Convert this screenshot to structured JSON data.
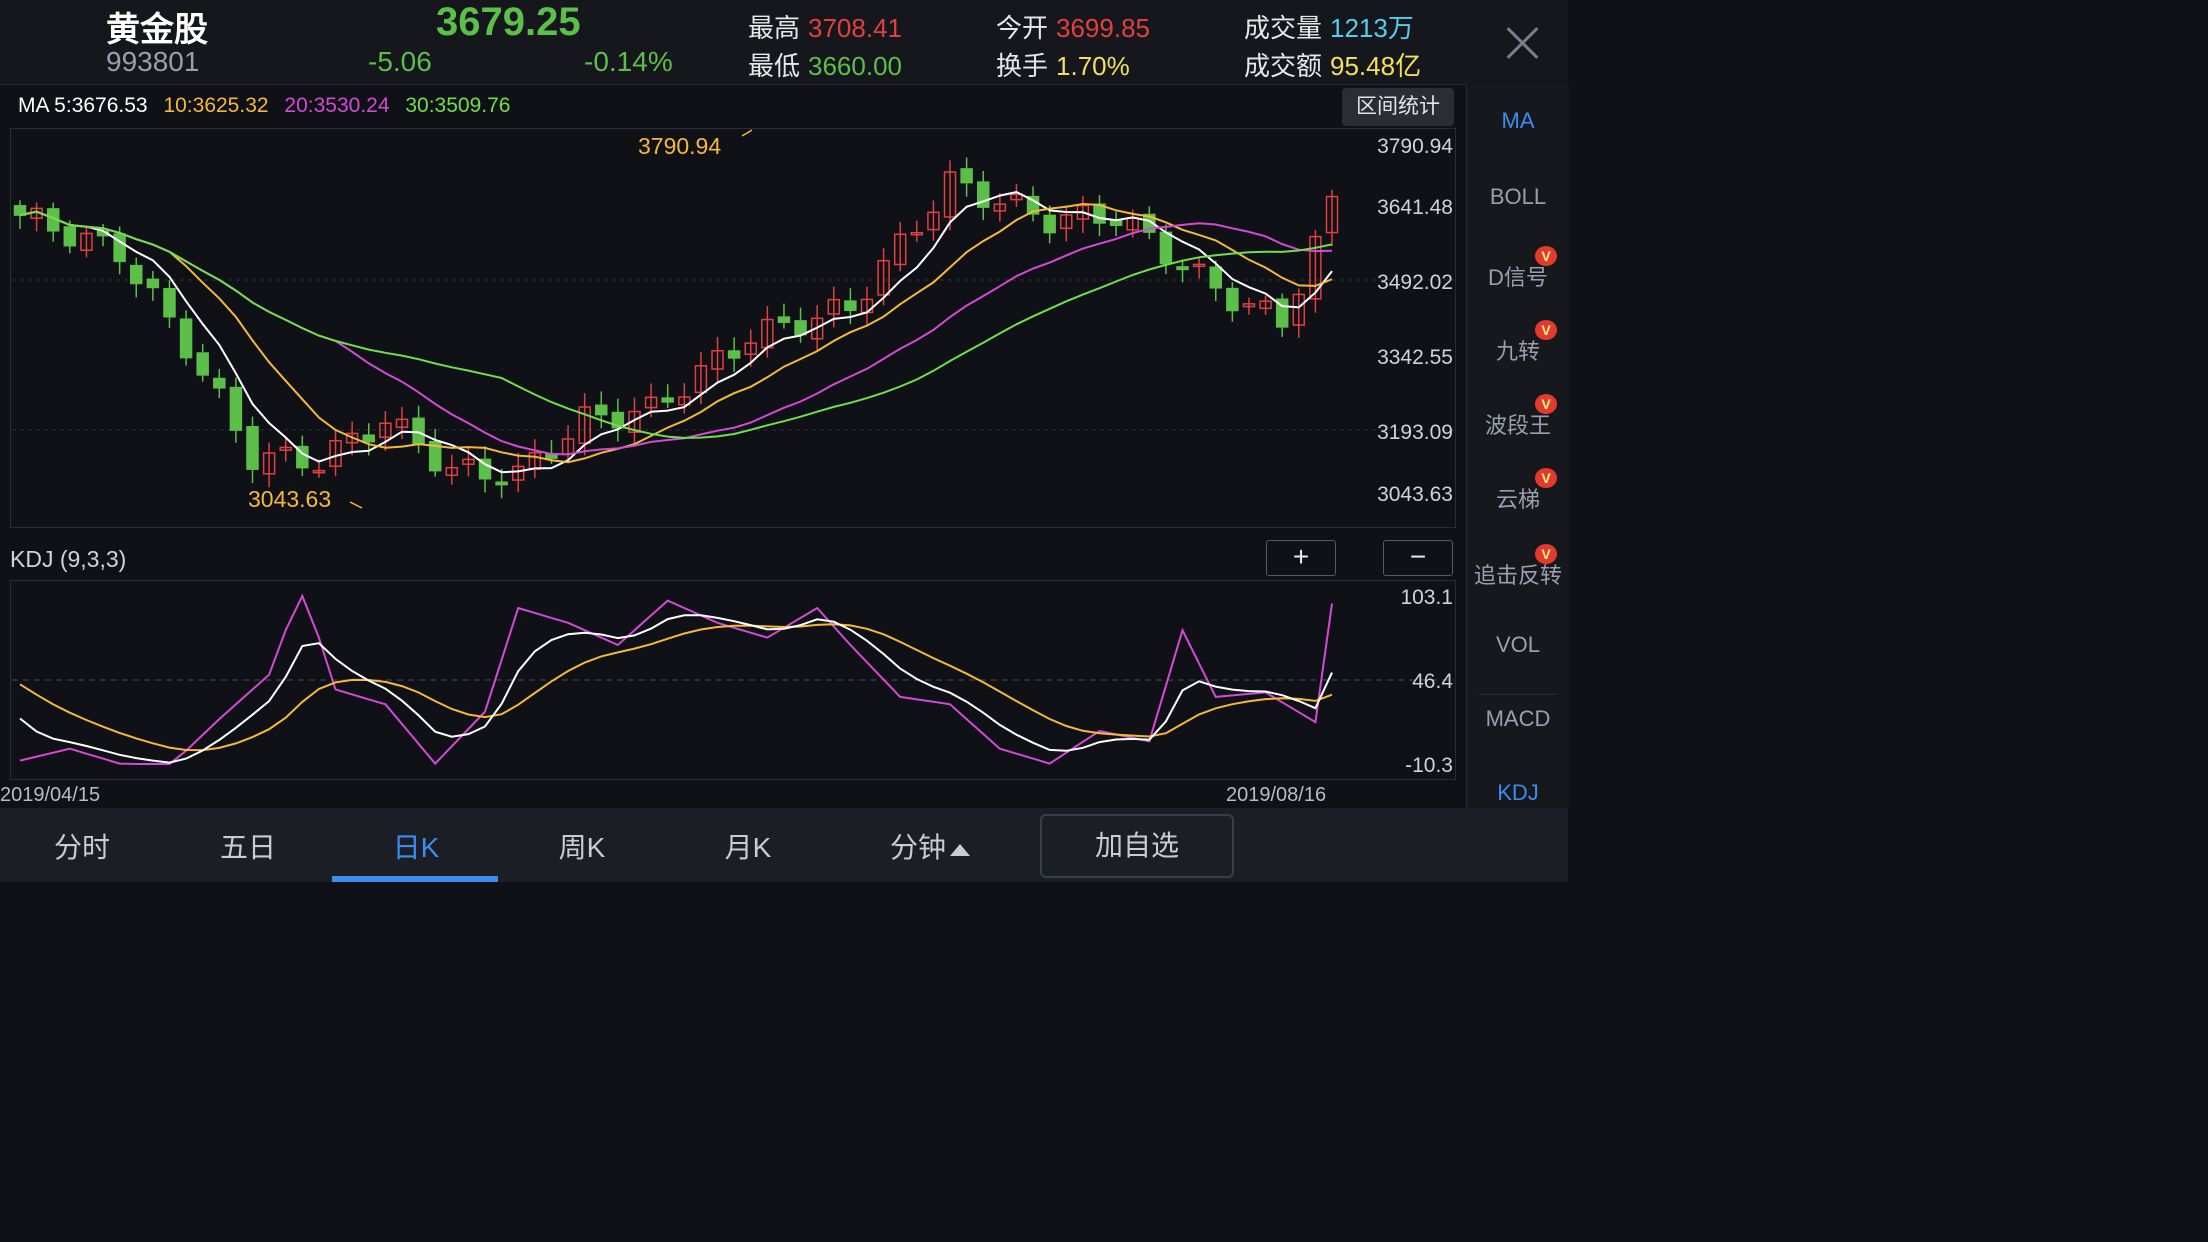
{
  "header": {
    "name": "黄金股",
    "code": "993801",
    "price": "3679.25",
    "change": "-5.06",
    "change_pct": "-0.14%",
    "high_label": "最高",
    "high": "3708.41",
    "low_label": "最低",
    "low": "3660.00",
    "open_label": "今开",
    "open": "3699.85",
    "turnover_label": "换手",
    "turnover": "1.70%",
    "volume_label": "成交量",
    "volume": "1213万",
    "amount_label": "成交额",
    "amount": "95.48亿"
  },
  "ma_legend": {
    "ma5": "MA 5:3676.53",
    "ma10": "10:3625.32",
    "ma20": "20:3530.24",
    "ma30": "30:3509.76"
  },
  "range_button": "区间统计",
  "price_chart": {
    "y_ticks": [
      "3790.94",
      "3641.48",
      "3492.02",
      "3342.55",
      "3193.09",
      "3043.63"
    ],
    "max_annotation": "3790.94",
    "min_annotation": "3043.63"
  },
  "kdj": {
    "title": "KDJ (9,3,3)",
    "y_ticks": [
      "103.1",
      "46.4",
      "-10.3"
    ],
    "zoom_in": "+",
    "zoom_out": "−"
  },
  "dates": {
    "start": "2019/04/15",
    "end": "2019/08/16"
  },
  "side_items": [
    {
      "label": "MA",
      "active": true,
      "badge": false
    },
    {
      "label": "BOLL",
      "active": false,
      "badge": false
    },
    {
      "label": "D信号",
      "active": false,
      "badge": true
    },
    {
      "label": "九转",
      "active": false,
      "badge": true
    },
    {
      "label": "波段王",
      "active": false,
      "badge": true
    },
    {
      "label": "云梯",
      "active": false,
      "badge": true
    },
    {
      "label": "追击反转",
      "active": false,
      "badge": true
    },
    {
      "label": "VOL",
      "active": false,
      "badge": false
    },
    {
      "label": "MACD",
      "active": false,
      "badge": false
    },
    {
      "label": "KDJ",
      "active": true,
      "badge": false
    }
  ],
  "badge_text": "V",
  "tabs": [
    "分时",
    "五日",
    "日K",
    "周K",
    "月K",
    "分钟"
  ],
  "active_tab": "日K",
  "add_watch": "加自选",
  "colors": {
    "up": "#e04040",
    "down": "#5cbf49",
    "ma5": "#ffffff",
    "ma10": "#f5b93a",
    "ma20": "#d449d6",
    "ma30": "#6fe04a",
    "accent": "#3c8cf0"
  }
}
